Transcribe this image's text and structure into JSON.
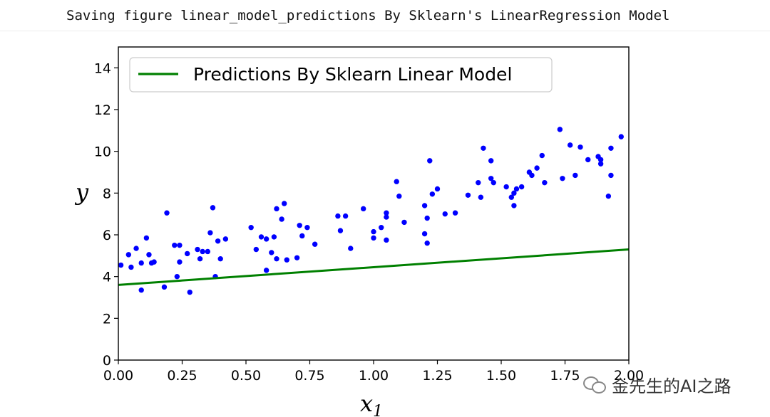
{
  "caption": "Saving figure linear_model_predictions By Sklearn's LinearRegression Model",
  "watermark": "金先生的AI之路",
  "colors": {
    "points": "#0000ff",
    "line": "#008000",
    "axes": "#000000"
  },
  "chart_data": {
    "type": "scatter",
    "title": "",
    "xlabel": "x_1",
    "ylabel": "y",
    "xlim": [
      0,
      2
    ],
    "ylim": [
      0,
      15
    ],
    "xticks": [
      "0.00",
      "0.25",
      "0.50",
      "0.75",
      "1.00",
      "1.25",
      "1.50",
      "1.75",
      "2.00"
    ],
    "yticks": [
      "0",
      "2",
      "4",
      "6",
      "8",
      "10",
      "12",
      "14"
    ],
    "legend_position": "top-left",
    "grid": false,
    "series": [
      {
        "name": "",
        "kind": "points",
        "color": "#0000ff",
        "points": [
          [
            0.01,
            4.55
          ],
          [
            0.04,
            5.05
          ],
          [
            0.05,
            4.45
          ],
          [
            0.07,
            5.35
          ],
          [
            0.09,
            3.35
          ],
          [
            0.09,
            4.65
          ],
          [
            0.11,
            5.85
          ],
          [
            0.12,
            5.05
          ],
          [
            0.13,
            4.65
          ],
          [
            0.14,
            4.7
          ],
          [
            0.18,
            3.5
          ],
          [
            0.19,
            7.05
          ],
          [
            0.22,
            5.5
          ],
          [
            0.23,
            4.0
          ],
          [
            0.24,
            4.7
          ],
          [
            0.24,
            5.5
          ],
          [
            0.27,
            5.1
          ],
          [
            0.28,
            3.25
          ],
          [
            0.31,
            5.3
          ],
          [
            0.32,
            4.85
          ],
          [
            0.33,
            5.2
          ],
          [
            0.35,
            5.2
          ],
          [
            0.36,
            6.1
          ],
          [
            0.37,
            7.3
          ],
          [
            0.38,
            4.0
          ],
          [
            0.39,
            5.7
          ],
          [
            0.4,
            4.85
          ],
          [
            0.42,
            5.8
          ],
          [
            0.52,
            6.35
          ],
          [
            0.54,
            5.3
          ],
          [
            0.56,
            5.9
          ],
          [
            0.58,
            4.3
          ],
          [
            0.58,
            5.8
          ],
          [
            0.6,
            5.15
          ],
          [
            0.61,
            5.9
          ],
          [
            0.62,
            7.25
          ],
          [
            0.62,
            4.85
          ],
          [
            0.64,
            6.75
          ],
          [
            0.65,
            7.5
          ],
          [
            0.66,
            4.8
          ],
          [
            0.7,
            4.9
          ],
          [
            0.71,
            6.45
          ],
          [
            0.72,
            5.95
          ],
          [
            0.74,
            6.35
          ],
          [
            0.77,
            5.55
          ],
          [
            0.86,
            6.9
          ],
          [
            0.87,
            6.2
          ],
          [
            0.89,
            6.9
          ],
          [
            0.91,
            5.35
          ],
          [
            0.96,
            7.25
          ],
          [
            1.0,
            6.15
          ],
          [
            1.0,
            5.85
          ],
          [
            1.03,
            6.35
          ],
          [
            1.05,
            7.05
          ],
          [
            1.05,
            6.85
          ],
          [
            1.05,
            5.75
          ],
          [
            1.09,
            8.55
          ],
          [
            1.1,
            7.85
          ],
          [
            1.12,
            6.6
          ],
          [
            1.2,
            7.4
          ],
          [
            1.2,
            6.05
          ],
          [
            1.21,
            5.6
          ],
          [
            1.21,
            6.8
          ],
          [
            1.22,
            9.55
          ],
          [
            1.23,
            7.95
          ],
          [
            1.25,
            8.2
          ],
          [
            1.28,
            7.0
          ],
          [
            1.32,
            7.05
          ],
          [
            1.37,
            7.9
          ],
          [
            1.41,
            8.5
          ],
          [
            1.42,
            7.8
          ],
          [
            1.43,
            10.15
          ],
          [
            1.46,
            9.55
          ],
          [
            1.46,
            8.7
          ],
          [
            1.47,
            8.5
          ],
          [
            1.52,
            8.3
          ],
          [
            1.54,
            7.8
          ],
          [
            1.55,
            8.0
          ],
          [
            1.55,
            7.4
          ],
          [
            1.56,
            8.2
          ],
          [
            1.58,
            8.3
          ],
          [
            1.61,
            9.0
          ],
          [
            1.62,
            8.85
          ],
          [
            1.64,
            9.2
          ],
          [
            1.66,
            9.8
          ],
          [
            1.67,
            8.5
          ],
          [
            1.73,
            11.05
          ],
          [
            1.74,
            8.7
          ],
          [
            1.77,
            10.3
          ],
          [
            1.79,
            8.85
          ],
          [
            1.81,
            10.2
          ],
          [
            1.84,
            9.6
          ],
          [
            1.88,
            9.75
          ],
          [
            1.89,
            9.6
          ],
          [
            1.89,
            9.4
          ],
          [
            1.92,
            7.85
          ],
          [
            1.93,
            10.15
          ],
          [
            1.93,
            8.85
          ],
          [
            1.97,
            10.7
          ]
        ]
      },
      {
        "name": "Predictions By Sklearn Linear Model",
        "kind": "line",
        "color": "#008000",
        "x": [
          0,
          2
        ],
        "y": [
          3.6,
          5.3
        ]
      }
    ]
  }
}
